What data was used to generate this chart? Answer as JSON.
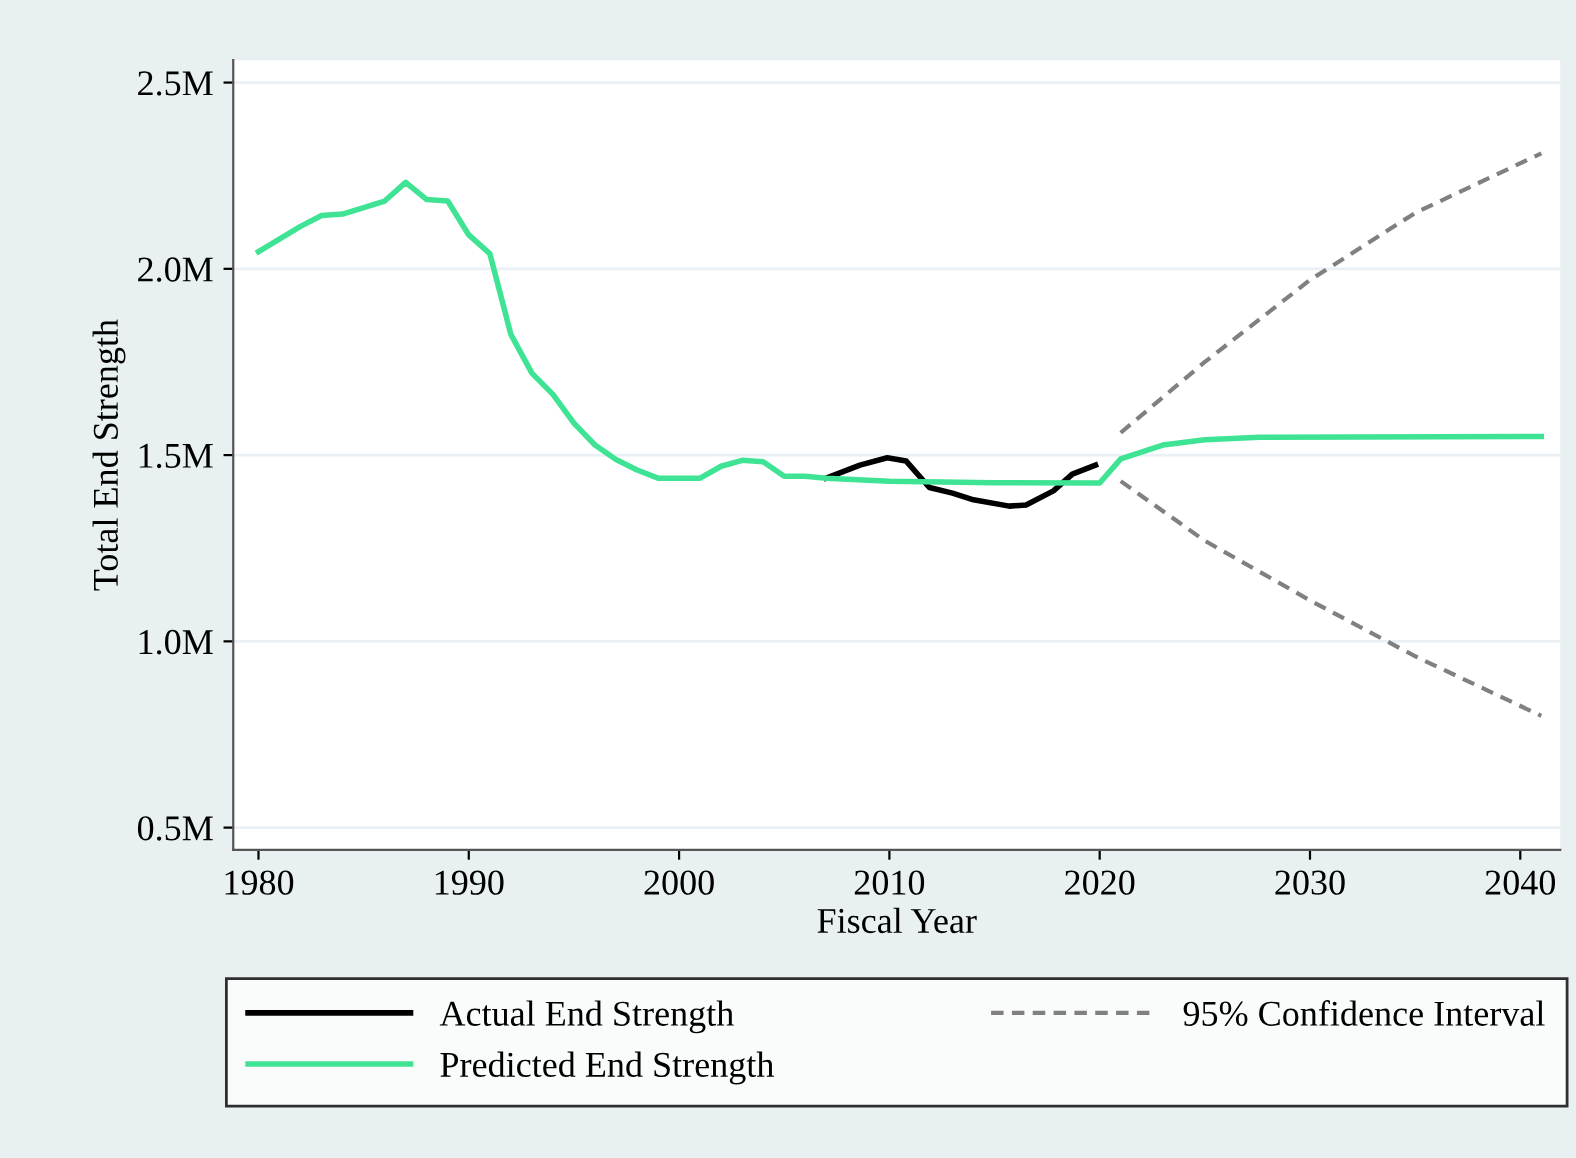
{
  "chart_data": {
    "type": "line",
    "xlabel": "Fiscal Year",
    "ylabel": "Total End Strength",
    "xlim": [
      1978.8,
      2041.9
    ],
    "xticks": [
      1980,
      1990,
      2000,
      2010,
      2020,
      2030,
      2040
    ],
    "ylim": [
      0.44,
      2.56
    ],
    "yticks": [
      {
        "value": 0.5,
        "label": "0.5M"
      },
      {
        "value": 1.0,
        "label": "1.0M"
      },
      {
        "value": 1.5,
        "label": "1.5M"
      },
      {
        "value": 2.0,
        "label": "2.0M"
      },
      {
        "value": 2.5,
        "label": "2.5M"
      }
    ],
    "grid": "y",
    "legend": "bottom",
    "series": [
      {
        "name": "Actual End Strength",
        "color": "#000000",
        "line_style": "solid",
        "x": [
          2007,
          2008.6,
          2009.9,
          2010.8,
          2011.9,
          2013,
          2014,
          2015.7,
          2016.5,
          2017.8,
          2018.7,
          2019.8
        ],
        "values": [
          1.438,
          1.473,
          1.493,
          1.484,
          1.413,
          1.398,
          1.38,
          1.363,
          1.366,
          1.404,
          1.449,
          1.473
        ]
      },
      {
        "name": "Predicted End Strength",
        "color": "#3fe394",
        "line_style": "solid",
        "x": [
          1980,
          1982,
          1983,
          1984,
          1986,
          1987,
          1988,
          1989,
          1990,
          1991,
          1992,
          1993,
          1994,
          1995,
          1996,
          1997,
          1998,
          1999,
          2001,
          2002,
          2003,
          2004,
          2005,
          2006,
          2007,
          2010,
          2015,
          2020,
          2021,
          2023,
          2025,
          2027.6,
          2041
        ],
        "values": [
          2.046,
          2.114,
          2.143,
          2.147,
          2.182,
          2.232,
          2.186,
          2.182,
          2.091,
          2.041,
          1.824,
          1.72,
          1.663,
          1.586,
          1.527,
          1.488,
          1.46,
          1.438,
          1.438,
          1.47,
          1.486,
          1.482,
          1.443,
          1.443,
          1.438,
          1.43,
          1.426,
          1.425,
          1.49,
          1.527,
          1.541,
          1.548,
          1.55
        ]
      },
      {
        "name": "95% Confidence Interval",
        "color": "#808080",
        "line_style": "dashed",
        "x": [
          2021,
          2025,
          2030,
          2035,
          2041
        ],
        "values": [
          1.56,
          1.75,
          1.97,
          2.15,
          2.31
        ]
      },
      {
        "color": "#808080",
        "line_style": "dashed",
        "x": [
          2021,
          2025,
          2030,
          2035,
          2041
        ],
        "values": [
          1.43,
          1.27,
          1.11,
          0.96,
          0.8
        ]
      }
    ]
  }
}
